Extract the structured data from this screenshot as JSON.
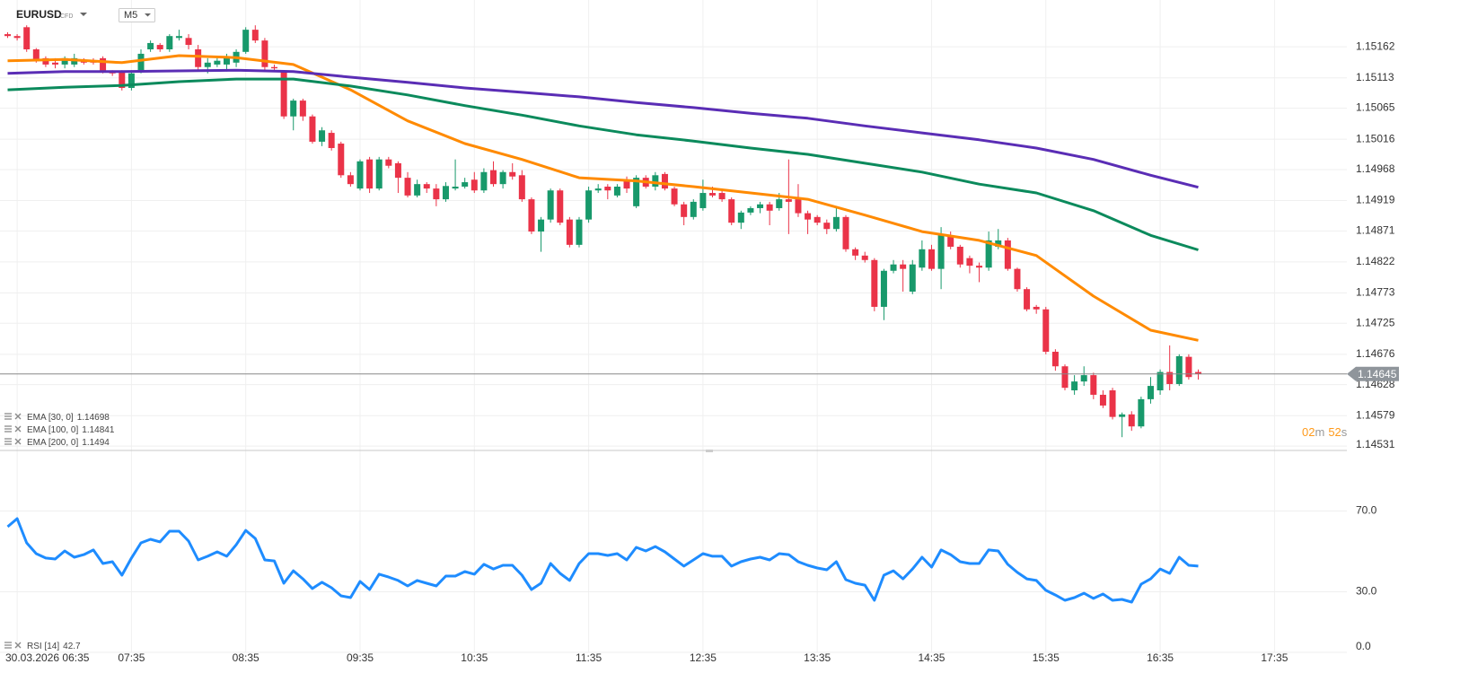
{
  "header": {
    "symbol": "EURUSD",
    "instrument_type": "CFD",
    "timeframe": "M5"
  },
  "countdown": {
    "minutes": "02",
    "minutes_unit": "m",
    "seconds": "52",
    "seconds_unit": "s"
  },
  "chart_data": [
    {
      "type": "candlestick",
      "categories": [
        "06:30",
        "06:35",
        "06:40",
        "06:45",
        "06:50",
        "06:55",
        "07:00",
        "07:05",
        "07:10",
        "07:15",
        "07:20",
        "07:25",
        "07:30",
        "07:35",
        "07:40",
        "07:45",
        "07:50",
        "07:55",
        "08:00",
        "08:05",
        "08:10",
        "08:15",
        "08:20",
        "08:25",
        "08:30",
        "08:35",
        "08:40",
        "08:45",
        "08:50",
        "08:55",
        "09:00",
        "09:05",
        "09:10",
        "09:15",
        "09:20",
        "09:25",
        "09:30",
        "09:35",
        "09:40",
        "09:45",
        "09:50",
        "09:55",
        "10:00",
        "10:05",
        "10:10",
        "10:15",
        "10:20",
        "10:25",
        "10:30",
        "10:35",
        "10:40",
        "10:45",
        "10:50",
        "10:55",
        "11:00",
        "11:05",
        "11:10",
        "11:15",
        "11:20",
        "11:25",
        "11:30",
        "11:35",
        "11:40",
        "11:45",
        "11:50",
        "11:55",
        "12:00",
        "12:05",
        "12:10",
        "12:15",
        "12:20",
        "12:25",
        "12:30",
        "12:35",
        "12:40",
        "12:45",
        "12:50",
        "12:55",
        "13:00",
        "13:05",
        "13:10",
        "13:15",
        "13:20",
        "13:25",
        "13:30",
        "13:35",
        "13:40",
        "13:45",
        "13:50",
        "13:55",
        "14:00",
        "14:05",
        "14:10",
        "14:15",
        "14:20",
        "14:25",
        "14:30",
        "14:35",
        "14:40",
        "14:45",
        "14:50",
        "14:55",
        "15:00",
        "15:05",
        "15:10",
        "15:15",
        "15:20",
        "15:25",
        "15:30",
        "15:35",
        "15:40",
        "15:45",
        "15:50",
        "15:55",
        "16:00",
        "16:05",
        "16:10",
        "16:15",
        "16:20",
        "16:25",
        "16:30",
        "16:35",
        "16:40",
        "16:45",
        "16:50",
        "16:55"
      ],
      "open": [
        1.15182,
        1.15179,
        1.15193,
        1.15158,
        1.15144,
        1.15137,
        1.15134,
        1.15134,
        1.1514,
        1.1514,
        1.15144,
        1.15123,
        1.15123,
        1.15097,
        1.15125,
        1.15158,
        1.15165,
        1.15158,
        1.15176,
        1.15176,
        1.15158,
        1.1513,
        1.15134,
        1.15134,
        1.15137,
        1.15154,
        1.15189,
        1.15172,
        1.1513,
        1.15123,
        1.15052,
        1.15077,
        1.15052,
        1.15012,
        1.15026,
        1.15009,
        1.14959,
        1.14938,
        1.14984,
        1.14938,
        1.14984,
        1.14978,
        1.14955,
        1.14927,
        1.14945,
        1.14938,
        1.14921,
        1.14938,
        1.14941,
        1.14952,
        1.14935,
        1.14967,
        1.14945,
        1.14964,
        1.14959,
        1.14921,
        1.1487,
        1.14889,
        1.14935,
        1.14889,
        1.14849,
        1.14889,
        1.14935,
        1.14941,
        1.14927,
        1.14952,
        1.1491,
        1.14955,
        1.14941,
        1.14961,
        1.14938,
        1.14913,
        1.14893,
        1.14907,
        1.14931,
        1.14931,
        1.14921,
        1.14884,
        1.149,
        1.14907,
        1.14913,
        1.14907,
        1.14921,
        1.14921,
        1.14899,
        1.14893,
        1.14884,
        1.14874,
        1.14893,
        1.14842,
        1.14832,
        1.14825,
        1.14751,
        1.14808,
        1.14818,
        1.14775,
        1.14813,
        1.14842,
        1.14811,
        1.14864,
        1.14846,
        1.14828,
        1.14816,
        1.14813,
        1.14846,
        1.14856,
        1.14811,
        1.14779,
        1.14751,
        1.14747,
        1.1468,
        1.14657,
        1.14619,
        1.14633,
        1.14643,
        1.14612,
        1.14619,
        1.14577,
        1.14581,
        1.14562,
        1.14605,
        1.14619,
        1.14648,
        1.14629,
        1.14672,
        1.14648
      ],
      "high": [
        1.15185,
        1.15182,
        1.15196,
        1.1516,
        1.15147,
        1.15144,
        1.15147,
        1.15151,
        1.15144,
        1.15144,
        1.15147,
        1.15125,
        1.15125,
        1.15125,
        1.15158,
        1.15172,
        1.15168,
        1.15182,
        1.15189,
        1.15182,
        1.15165,
        1.15144,
        1.15144,
        1.15151,
        1.15158,
        1.15193,
        1.15196,
        1.15176,
        1.15134,
        1.15125,
        1.1508,
        1.1508,
        1.15055,
        1.15035,
        1.1503,
        1.15012,
        1.14964,
        1.14984,
        1.14988,
        1.14988,
        1.14988,
        1.14981,
        1.14964,
        1.14952,
        1.14948,
        1.14945,
        1.14948,
        1.14984,
        1.14955,
        1.14964,
        1.1497,
        1.14981,
        1.14967,
        1.14978,
        1.14967,
        1.14924,
        1.14893,
        1.14938,
        1.14938,
        1.14893,
        1.14893,
        1.14941,
        1.14945,
        1.14945,
        1.14945,
        1.14957,
        1.14959,
        1.14959,
        1.14964,
        1.14964,
        1.14941,
        1.14917,
        1.14921,
        1.14952,
        1.14941,
        1.14935,
        1.14924,
        1.14903,
        1.1491,
        1.14917,
        1.14917,
        1.14931,
        1.14984,
        1.14945,
        1.14903,
        1.14896,
        1.14889,
        1.14907,
        1.14896,
        1.14845,
        1.14838,
        1.14828,
        1.14811,
        1.14825,
        1.14825,
        1.14825,
        1.14856,
        1.14849,
        1.14877,
        1.1487,
        1.14849,
        1.14832,
        1.14821,
        1.1487,
        1.14874,
        1.1486,
        1.14813,
        1.14782,
        1.14754,
        1.14751,
        1.14684,
        1.1466,
        1.14643,
        1.14657,
        1.14647,
        1.14619,
        1.14623,
        1.14584,
        1.14586,
        1.14609,
        1.1464,
        1.14652,
        1.1469,
        1.14676,
        1.14676,
        1.14652
      ],
      "low": [
        1.15176,
        1.15172,
        1.15154,
        1.15137,
        1.1513,
        1.15128,
        1.15128,
        1.1513,
        1.15134,
        1.15134,
        1.1512,
        1.15116,
        1.15093,
        1.15093,
        1.1512,
        1.15154,
        1.15154,
        1.15154,
        1.15172,
        1.15158,
        1.15125,
        1.1512,
        1.1513,
        1.15123,
        1.1513,
        1.15151,
        1.15168,
        1.15125,
        1.15123,
        1.15048,
        1.1503,
        1.15045,
        1.15009,
        1.15005,
        1.14998,
        1.14955,
        1.14941,
        1.14935,
        1.14931,
        1.14935,
        1.1497,
        1.14931,
        1.14924,
        1.14924,
        1.14931,
        1.1491,
        1.14917,
        1.14935,
        1.14938,
        1.14931,
        1.14931,
        1.14941,
        1.14938,
        1.14952,
        1.14917,
        1.14866,
        1.14838,
        1.14884,
        1.1488,
        1.14845,
        1.14845,
        1.14884,
        1.14931,
        1.14921,
        1.14924,
        1.14931,
        1.14907,
        1.14938,
        1.14935,
        1.14935,
        1.1491,
        1.1488,
        1.14889,
        1.14903,
        1.14924,
        1.14917,
        1.1488,
        1.14874,
        1.14896,
        1.14899,
        1.1488,
        1.14903,
        1.14866,
        1.14893,
        1.14866,
        1.1488,
        1.14866,
        1.1487,
        1.14838,
        1.14825,
        1.14821,
        1.14744,
        1.1473,
        1.14804,
        1.14775,
        1.14771,
        1.14808,
        1.14808,
        1.14779,
        1.14842,
        1.14813,
        1.14804,
        1.1479,
        1.14808,
        1.14842,
        1.14808,
        1.14775,
        1.14744,
        1.1474,
        1.14676,
        1.1465,
        1.14619,
        1.14612,
        1.14626,
        1.14605,
        1.14591,
        1.14573,
        1.14545,
        1.14555,
        1.14559,
        1.14598,
        1.14612,
        1.14619,
        1.14626,
        1.14636,
        1.14636
      ],
      "close": [
        1.15179,
        1.15176,
        1.15158,
        1.1514,
        1.15134,
        1.15134,
        1.15144,
        1.15144,
        1.15137,
        1.15137,
        1.15123,
        1.1512,
        1.15097,
        1.1512,
        1.15151,
        1.15168,
        1.15158,
        1.15179,
        1.15179,
        1.15165,
        1.1513,
        1.15137,
        1.1514,
        1.15144,
        1.15154,
        1.15189,
        1.15172,
        1.1513,
        1.15128,
        1.15052,
        1.15077,
        1.15052,
        1.15012,
        1.1503,
        1.15002,
        1.14959,
        1.14945,
        1.14981,
        1.14938,
        1.14984,
        1.14974,
        1.14955,
        1.14927,
        1.14945,
        1.14938,
        1.14921,
        1.14942,
        1.14941,
        1.14948,
        1.14935,
        1.14964,
        1.14945,
        1.14964,
        1.14957,
        1.14921,
        1.1487,
        1.14889,
        1.14935,
        1.14884,
        1.14849,
        1.14889,
        1.14935,
        1.14938,
        1.14935,
        1.14941,
        1.14938,
        1.14955,
        1.14941,
        1.14959,
        1.14938,
        1.14913,
        1.14893,
        1.14917,
        1.14931,
        1.14927,
        1.14921,
        1.14884,
        1.149,
        1.14907,
        1.14913,
        1.14903,
        1.14921,
        1.14917,
        1.14899,
        1.14889,
        1.14884,
        1.14874,
        1.14893,
        1.14842,
        1.14832,
        1.14825,
        1.14751,
        1.14808,
        1.14818,
        1.14811,
        1.14818,
        1.14842,
        1.14811,
        1.14864,
        1.14846,
        1.14818,
        1.14816,
        1.14813,
        1.14856,
        1.14856,
        1.14811,
        1.14779,
        1.14747,
        1.14747,
        1.1468,
        1.14657,
        1.14623,
        1.14633,
        1.14643,
        1.14612,
        1.14595,
        1.14577,
        1.14581,
        1.14562,
        1.14605,
        1.14626,
        1.14648,
        1.14629,
        1.14673,
        1.1464,
        1.14645
      ],
      "up_color": "#18996b",
      "down_color": "#ea3348",
      "series": [
        {
          "name": "EMA [30, 0]",
          "color": "#ff8a00",
          "x": [
            "06:30",
            "07:00",
            "07:30",
            "08:00",
            "08:30",
            "09:00",
            "09:30",
            "10:00",
            "10:30",
            "11:00",
            "11:30",
            "12:00",
            "12:30",
            "13:00",
            "13:30",
            "14:00",
            "14:30",
            "15:00",
            "15:30",
            "16:00",
            "16:30",
            "16:55"
          ],
          "values": [
            1.1514,
            1.15142,
            1.15137,
            1.15148,
            1.15145,
            1.15134,
            1.15094,
            1.15045,
            1.15009,
            1.14984,
            1.14955,
            1.1495,
            1.14941,
            1.14931,
            1.14921,
            1.14896,
            1.1487,
            1.14856,
            1.14832,
            1.14768,
            1.14714,
            1.14698
          ]
        },
        {
          "name": "EMA [100, 0]",
          "color": "#0b8a5c",
          "x": [
            "06:30",
            "07:00",
            "07:30",
            "08:00",
            "08:30",
            "09:00",
            "09:30",
            "10:00",
            "10:30",
            "11:00",
            "11:30",
            "12:00",
            "12:30",
            "13:00",
            "13:30",
            "14:00",
            "14:30",
            "15:00",
            "15:30",
            "16:00",
            "16:30",
            "16:55"
          ],
          "values": [
            1.15094,
            1.15098,
            1.15101,
            1.15107,
            1.15111,
            1.15111,
            1.151,
            1.15086,
            1.15069,
            1.15054,
            1.15037,
            1.15023,
            1.15013,
            1.15002,
            1.14992,
            1.14978,
            1.14964,
            1.14945,
            1.14931,
            1.14903,
            1.14864,
            1.14841
          ]
        },
        {
          "name": "EMA [200, 0]",
          "color": "#5a2db5",
          "x": [
            "06:30",
            "07:00",
            "07:30",
            "08:00",
            "08:30",
            "09:00",
            "09:30",
            "10:00",
            "10:30",
            "11:00",
            "11:30",
            "12:00",
            "12:30",
            "13:00",
            "13:30",
            "14:00",
            "14:30",
            "15:00",
            "15:30",
            "16:00",
            "16:30",
            "16:55"
          ],
          "values": [
            1.1512,
            1.15123,
            1.15123,
            1.15124,
            1.15125,
            1.15123,
            1.15114,
            1.15106,
            1.15097,
            1.1509,
            1.15083,
            1.15074,
            1.15066,
            1.15057,
            1.15049,
            1.15037,
            1.15026,
            1.15015,
            1.15002,
            1.14984,
            1.14959,
            1.1494
          ]
        }
      ],
      "last_price": 1.14645,
      "xlim": [
        "06:26",
        "18:13"
      ],
      "xticks": [
        {
          "value": "06:35",
          "label": "30.03.2026 06:35"
        },
        "07:35",
        "08:35",
        "09:35",
        "10:35",
        "11:35",
        "12:35",
        "13:35",
        "14:35",
        "15:35",
        "16:35",
        "17:35"
      ],
      "ylim": [
        1.14524,
        1.15236
      ],
      "yticks": [
        1.14531,
        1.14579,
        1.14628,
        1.14676,
        1.14725,
        1.14773,
        1.14822,
        1.14871,
        1.14919,
        1.14968,
        1.15016,
        1.15065,
        1.15113,
        1.15162
      ],
      "grid": true
    },
    {
      "type": "line",
      "series": [
        {
          "name": "RSI [14]",
          "color": "#1e8cff",
          "values": [
            62.2,
            66.2,
            54.2,
            48.9,
            46.7,
            46.2,
            50.2,
            47.1,
            48.4,
            50.7,
            44.0,
            44.9,
            38.2,
            46.7,
            54.2,
            56.0,
            54.7,
            60.0,
            60.0,
            55.1,
            45.8,
            47.6,
            49.8,
            47.6,
            53.3,
            60.4,
            56.4,
            45.8,
            45.3,
            34.2,
            40.4,
            36.4,
            31.6,
            34.7,
            32.0,
            28.0,
            27.1,
            35.1,
            31.1,
            38.7,
            37.3,
            35.6,
            32.9,
            35.6,
            34.2,
            32.9,
            37.8,
            37.8,
            40.0,
            38.7,
            43.6,
            41.3,
            43.1,
            43.1,
            38.2,
            31.1,
            34.2,
            44.0,
            39.1,
            35.6,
            44.0,
            48.9,
            48.9,
            48.0,
            48.9,
            45.8,
            52.0,
            50.2,
            52.4,
            49.8,
            46.2,
            42.7,
            45.8,
            48.9,
            47.6,
            47.6,
            42.7,
            44.9,
            46.2,
            47.1,
            45.8,
            48.9,
            48.4,
            44.9,
            43.1,
            41.8,
            40.9,
            44.9,
            36.0,
            34.2,
            33.3,
            25.8,
            38.2,
            40.4,
            36.4,
            41.3,
            47.1,
            42.2,
            50.7,
            48.4,
            44.9,
            44.0,
            44.0,
            50.7,
            50.2,
            43.6,
            39.6,
            36.4,
            35.6,
            30.7,
            28.4,
            25.8,
            27.1,
            29.3,
            26.7,
            28.9,
            25.8,
            26.2,
            24.9,
            33.8,
            36.4,
            41.3,
            39.1,
            47.1,
            43.1,
            42.7
          ]
        }
      ],
      "ylim": [
        0,
        100
      ],
      "yticks": [
        {
          "value": 0,
          "label": "0.0"
        },
        {
          "value": 30,
          "label": "30.0"
        },
        {
          "value": 70,
          "label": "70.0"
        }
      ],
      "grid": true
    }
  ]
}
